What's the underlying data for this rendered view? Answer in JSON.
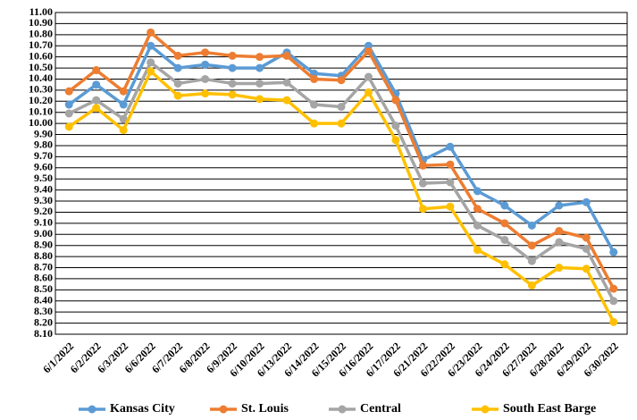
{
  "chart_data": {
    "type": "line",
    "categories": [
      "6/1/2022",
      "6/2/2022",
      "6/3/2022",
      "6/6/2022",
      "6/7/2022",
      "6/8/2022",
      "6/9/2022",
      "6/10/2022",
      "6/13/2022",
      "6/14/2022",
      "6/15/2022",
      "6/16/2022",
      "6/17/2022",
      "6/21/2022",
      "6/22/2022",
      "6/23/2022",
      "6/24/2022",
      "6/27/2022",
      "6/28/2022",
      "6/29/2022",
      "6/30/2022"
    ],
    "series": [
      {
        "name": "Kansas City",
        "color": "#5b9bd5",
        "values": [
          10.17,
          10.35,
          10.17,
          10.7,
          10.5,
          10.53,
          10.5,
          10.5,
          10.64,
          10.45,
          10.43,
          10.7,
          10.27,
          9.67,
          9.79,
          9.39,
          9.26,
          9.08,
          9.26,
          9.29,
          8.84
        ]
      },
      {
        "name": "St. Louis",
        "color": "#ed7d31",
        "values": [
          10.29,
          10.48,
          10.29,
          10.82,
          10.61,
          10.64,
          10.61,
          10.6,
          10.61,
          10.4,
          10.39,
          10.65,
          10.21,
          9.62,
          9.63,
          9.23,
          9.1,
          8.9,
          9.03,
          8.97,
          8.51
        ]
      },
      {
        "name": "Central",
        "color": "#a5a5a5",
        "values": [
          10.09,
          10.21,
          10.04,
          10.55,
          10.36,
          10.4,
          10.36,
          10.36,
          10.37,
          10.17,
          10.15,
          10.42,
          9.98,
          9.46,
          9.47,
          9.08,
          8.95,
          8.76,
          8.93,
          8.87,
          8.4
        ]
      },
      {
        "name": "South East Barge",
        "color": "#ffc000",
        "values": [
          9.97,
          10.14,
          9.94,
          10.47,
          10.25,
          10.27,
          10.26,
          10.22,
          10.21,
          10.0,
          10.0,
          10.28,
          9.85,
          9.23,
          9.25,
          8.86,
          8.73,
          8.54,
          8.7,
          8.69,
          8.21
        ]
      }
    ],
    "ylim": [
      8.1,
      11.0
    ],
    "yticks": [
      {
        "value": 8.1,
        "label": "8.10"
      },
      {
        "value": 8.2,
        "label": "8.20"
      },
      {
        "value": 8.3,
        "label": "8.30"
      },
      {
        "value": 8.4,
        "label": "8.40"
      },
      {
        "value": 8.5,
        "label": "8.50"
      },
      {
        "value": 8.6,
        "label": "8.60"
      },
      {
        "value": 8.7,
        "label": "8.70"
      },
      {
        "value": 8.8,
        "label": "8.80"
      },
      {
        "value": 8.9,
        "label": "8.90"
      },
      {
        "value": 9.0,
        "label": "9.00"
      },
      {
        "value": 9.1,
        "label": "9.10"
      },
      {
        "value": 9.2,
        "label": "9.20"
      },
      {
        "value": 9.3,
        "label": "9.30"
      },
      {
        "value": 9.4,
        "label": "9.40"
      },
      {
        "value": 9.5,
        "label": "9.50"
      },
      {
        "value": 9.6,
        "label": "9.60"
      },
      {
        "value": 9.7,
        "label": "9.70"
      },
      {
        "value": 9.8,
        "label": "9.80"
      },
      {
        "value": 9.9,
        "label": "9.90"
      },
      {
        "value": 10.0,
        "label": "10.00"
      },
      {
        "value": 10.1,
        "label": "10.10"
      },
      {
        "value": 10.2,
        "label": "10.20"
      },
      {
        "value": 10.3,
        "label": "10.30"
      },
      {
        "value": 10.4,
        "label": "10.40"
      },
      {
        "value": 10.5,
        "label": "10.50"
      },
      {
        "value": 10.6,
        "label": "10.60"
      },
      {
        "value": 10.7,
        "label": "10.70"
      },
      {
        "value": 10.8,
        "label": "10.80"
      },
      {
        "value": 10.9,
        "label": "10.90"
      },
      {
        "value": 11.0,
        "label": "11.00"
      }
    ],
    "grid": true,
    "legend": "bottom"
  }
}
